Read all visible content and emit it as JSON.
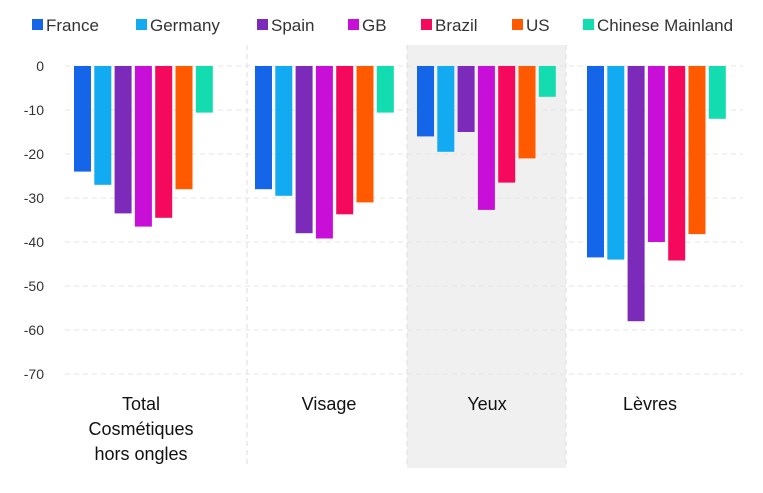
{
  "chart_data": {
    "type": "bar",
    "title": "",
    "xlabel": "",
    "ylabel": "",
    "ylim": [
      -70,
      0
    ],
    "yticks": [
      0,
      -10,
      -20,
      -30,
      -40,
      -50,
      -60,
      -70
    ],
    "grid": true,
    "legend_position": "top",
    "categories": [
      [
        "Total",
        "Cosmétiques",
        "hors ongles"
      ],
      [
        "Visage"
      ],
      [
        "Yeux"
      ],
      [
        "Lèvres"
      ]
    ],
    "highlighted_category": 2,
    "series": [
      {
        "name": "France",
        "color": "#1565e8",
        "values": [
          -24,
          -28,
          -16,
          -43.5
        ]
      },
      {
        "name": "Germany",
        "color": "#12aaf0",
        "values": [
          -27,
          -29.5,
          -19.5,
          -44
        ]
      },
      {
        "name": "Spain",
        "color": "#7b2aba",
        "values": [
          -33.5,
          -38,
          -15,
          -58
        ]
      },
      {
        "name": "GB",
        "color": "#c80fd8",
        "values": [
          -36.5,
          -39.2,
          -32.7,
          -40
        ]
      },
      {
        "name": "Brazil",
        "color": "#f5095d",
        "values": [
          -34.5,
          -33.7,
          -26.5,
          -44.2
        ]
      },
      {
        "name": "US",
        "color": "#ff5a00",
        "values": [
          -28,
          -31,
          -21,
          -38.2
        ]
      },
      {
        "name": "Chinese Mainland",
        "color": "#12dcb0",
        "values": [
          -10.6,
          -10.6,
          -7,
          -12
        ]
      }
    ]
  }
}
